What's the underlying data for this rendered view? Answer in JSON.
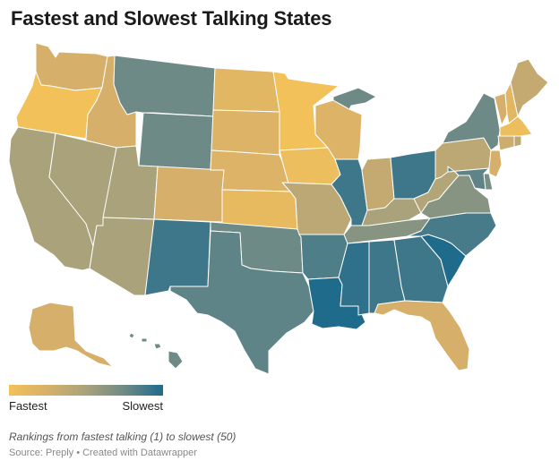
{
  "title": "Fastest and Slowest Talking States",
  "legend": {
    "left_label": "Fastest",
    "right_label": "Slowest",
    "colors": [
      "#f2c15a",
      "#d6b06a",
      "#a9a27a",
      "#6e8a86",
      "#1f6b8c"
    ]
  },
  "note": "Rankings from fastest talking (1) to slowest (50)",
  "source": "Source: Preply • Created with Datawrapper",
  "map_data": {
    "scale": "fastest-to-slowest",
    "states": [
      {
        "id": "WA",
        "level": 1
      },
      {
        "id": "OR",
        "level": 0
      },
      {
        "id": "CA",
        "level": 2
      },
      {
        "id": "ID",
        "level": 1
      },
      {
        "id": "NV",
        "level": 2
      },
      {
        "id": "MT",
        "level": 3
      },
      {
        "id": "WY",
        "level": 3
      },
      {
        "id": "UT",
        "level": 2
      },
      {
        "id": "AZ",
        "level": 2
      },
      {
        "id": "CO",
        "level": 1
      },
      {
        "id": "NM",
        "level": 3.6
      },
      {
        "id": "ND",
        "level": 0.6
      },
      {
        "id": "SD",
        "level": 0.8
      },
      {
        "id": "NE",
        "level": 0.8
      },
      {
        "id": "KS",
        "level": 0.4
      },
      {
        "id": "OK",
        "level": 3
      },
      {
        "id": "TX",
        "level": 3.2
      },
      {
        "id": "MN",
        "level": 0
      },
      {
        "id": "IA",
        "level": 0.2
      },
      {
        "id": "MO",
        "level": 1.6
      },
      {
        "id": "AR",
        "level": 3.4
      },
      {
        "id": "LA",
        "level": 4
      },
      {
        "id": "WI",
        "level": 0.8
      },
      {
        "id": "IL",
        "level": 3.6
      },
      {
        "id": "MI",
        "level": 3
      },
      {
        "id": "IN",
        "level": 1.4
      },
      {
        "id": "OH",
        "level": 3.6
      },
      {
        "id": "KY",
        "level": 2
      },
      {
        "id": "TN",
        "level": 2.6
      },
      {
        "id": "MS",
        "level": 3.8
      },
      {
        "id": "AL",
        "level": 3.6
      },
      {
        "id": "GA",
        "level": 3.6
      },
      {
        "id": "FL",
        "level": 1
      },
      {
        "id": "SC",
        "level": 4
      },
      {
        "id": "NC",
        "level": 3.5
      },
      {
        "id": "VA",
        "level": 2.6
      },
      {
        "id": "WV",
        "level": 1.8
      },
      {
        "id": "PA",
        "level": 1.6
      },
      {
        "id": "NY",
        "level": 3
      },
      {
        "id": "VT",
        "level": 1
      },
      {
        "id": "NH",
        "level": 0.6
      },
      {
        "id": "ME",
        "level": 1.4
      },
      {
        "id": "MA",
        "level": 0.2
      },
      {
        "id": "CT",
        "level": 1.2
      },
      {
        "id": "RI",
        "level": 1.6
      },
      {
        "id": "NJ",
        "level": 1
      },
      {
        "id": "DE",
        "level": 2.8
      },
      {
        "id": "MD",
        "level": 3.2
      },
      {
        "id": "AK",
        "level": 1
      },
      {
        "id": "HI",
        "level": 3
      }
    ]
  }
}
